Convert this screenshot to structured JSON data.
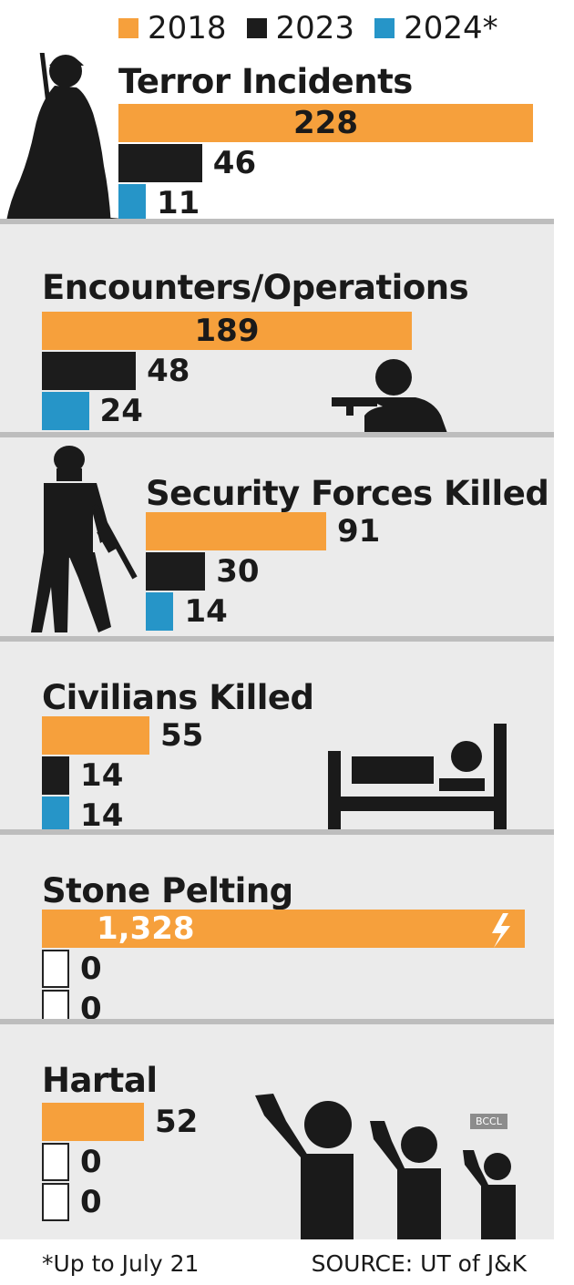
{
  "chart_data": {
    "type": "bar",
    "orientation": "horizontal",
    "legend": {
      "placement": "top",
      "entries": [
        {
          "label": "2018",
          "color": "#f6a03c"
        },
        {
          "label": "2023",
          "color": "#1c1c1c"
        },
        {
          "label": "2024*",
          "color": "#2695c8"
        }
      ]
    },
    "panels": [
      {
        "title": "Terror Incidents",
        "values": [
          228,
          46,
          11
        ],
        "labels": [
          "228",
          "46",
          "11"
        ],
        "icon": "militant-with-rifle-icon"
      },
      {
        "title": "Encounters/Operations",
        "values": [
          189,
          48,
          24
        ],
        "labels": [
          "189",
          "48",
          "24"
        ],
        "icon": "gunman-aiming-icon"
      },
      {
        "title": "Security Forces Killed",
        "values": [
          91,
          30,
          14
        ],
        "labels": [
          "91",
          "30",
          "14"
        ],
        "icon": "soldier-icon"
      },
      {
        "title": "Civilians Killed",
        "values": [
          55,
          14,
          14
        ],
        "labels": [
          "55",
          "14",
          "14"
        ],
        "icon": "person-in-bed-icon"
      },
      {
        "title": "Stone Pelting",
        "values": [
          1328,
          0,
          0
        ],
        "labels": [
          "1,328",
          "0",
          "0"
        ],
        "icon": "lightning-icon"
      },
      {
        "title": "Hartal",
        "values": [
          52,
          0,
          0
        ],
        "labels": [
          "52",
          "0",
          "0"
        ],
        "icon": "protesters-icon"
      }
    ],
    "footnote": "*Up to July 21",
    "source": "SOURCE: UT of J&K",
    "credit": "BCCL"
  }
}
